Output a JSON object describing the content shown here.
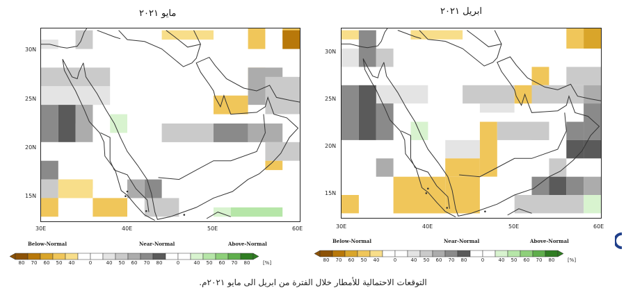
{
  "caption": "التوقعات الاحتمالية للأمطار خلال الفترة من ابريل الى مايو ٢٠٢١م.",
  "colors": {
    "below": {
      "80": "#8c5206",
      "70": "#b8780a",
      "60": "#d9a52a",
      "50": "#f0c65a",
      "40": "#f8de8a"
    },
    "near": {
      "40": "#e4e4e4",
      "50": "#cacaca",
      "60": "#acacac",
      "70": "#8a8a8a",
      "80": "#5a5a5a"
    },
    "above": {
      "40": "#d8f3cf",
      "50": "#b6e6a8",
      "60": "#8ed07a",
      "70": "#5fae4c",
      "80": "#2f7d22"
    }
  },
  "maps": [
    {
      "id": "may",
      "title": "مايو ٢٠٢١",
      "lat_labels": [
        "30N",
        "25N",
        "20N",
        "15N"
      ],
      "lon_labels": [
        "30E",
        "40E",
        "50E",
        "60E"
      ],
      "legend": {
        "below_label": "Below-Normal",
        "near_label": "Near-Normal",
        "above_label": "Above-Normal",
        "ticks": [
          "80",
          "70",
          "60",
          "50",
          "40",
          "0",
          "40",
          "50",
          "60",
          "70",
          "80",
          "0",
          "40",
          "50",
          "60",
          "70",
          "80",
          "[%]"
        ],
        "swatches": [
          {
            "cat": "below",
            "p": "80"
          },
          {
            "cat": "below",
            "p": "70"
          },
          {
            "cat": "below",
            "p": "60"
          },
          {
            "cat": "below",
            "p": "50"
          },
          {
            "cat": "below",
            "p": "40"
          },
          {
            "cat": "white",
            "p": "0"
          },
          {
            "cat": "white",
            "p": "0"
          },
          {
            "cat": "near",
            "p": "40"
          },
          {
            "cat": "near",
            "p": "50"
          },
          {
            "cat": "near",
            "p": "60"
          },
          {
            "cat": "near",
            "p": "70"
          },
          {
            "cat": "near",
            "p": "80"
          },
          {
            "cat": "white",
            "p": "0"
          },
          {
            "cat": "white",
            "p": "0"
          },
          {
            "cat": "above",
            "p": "40"
          },
          {
            "cat": "above",
            "p": "50"
          },
          {
            "cat": "above",
            "p": "60"
          },
          {
            "cat": "above",
            "p": "70"
          },
          {
            "cat": "above",
            "p": "80"
          }
        ]
      },
      "cells": [
        {
          "lon": 30,
          "lat": 31,
          "w": 2,
          "h": 1,
          "cat": "near",
          "p": "40"
        },
        {
          "lon": 34,
          "lat": 31,
          "w": 2,
          "h": 2,
          "cat": "near",
          "p": "50"
        },
        {
          "lon": 40,
          "lat": 32,
          "w": 2,
          "h": 1,
          "cat": "white",
          "p": "0"
        },
        {
          "lon": 44,
          "lat": 32,
          "w": 6,
          "h": 1,
          "cat": "below",
          "p": "40"
        },
        {
          "lon": 54,
          "lat": 31,
          "w": 2,
          "h": 3,
          "cat": "below",
          "p": "50"
        },
        {
          "lon": 58,
          "lat": 32,
          "w": 2,
          "h": 3,
          "cat": "below",
          "p": "50"
        },
        {
          "lon": 58,
          "lat": 31,
          "w": 2,
          "h": 2,
          "cat": "below",
          "p": "70"
        },
        {
          "lon": 30,
          "lat": 27,
          "w": 8,
          "h": 2,
          "cat": "near",
          "p": "50"
        },
        {
          "lon": 30,
          "lat": 25,
          "w": 8,
          "h": 2,
          "cat": "near",
          "p": "40"
        },
        {
          "lon": 34,
          "lat": 23,
          "w": 2,
          "h": 2,
          "cat": "near",
          "p": "60"
        },
        {
          "lon": 54,
          "lat": 26,
          "w": 2,
          "h": 3,
          "cat": "below",
          "p": "50"
        },
        {
          "lon": 50,
          "lat": 24,
          "w": 4,
          "h": 2,
          "cat": "below",
          "p": "50"
        },
        {
          "lon": 38,
          "lat": 22,
          "w": 2,
          "h": 2,
          "cat": "above",
          "p": "40"
        },
        {
          "lon": 30,
          "lat": 21,
          "w": 2,
          "h": 4,
          "cat": "near",
          "p": "70"
        },
        {
          "lon": 32,
          "lat": 21,
          "w": 2,
          "h": 4,
          "cat": "near",
          "p": "80"
        },
        {
          "lon": 34,
          "lat": 21,
          "w": 2,
          "h": 4,
          "cat": "near",
          "p": "60"
        },
        {
          "lon": 54,
          "lat": 25,
          "w": 4,
          "h": 4,
          "cat": "near",
          "p": "60"
        },
        {
          "lon": 56,
          "lat": 24,
          "w": 4,
          "h": 4,
          "cat": "near",
          "p": "50"
        },
        {
          "lon": 44,
          "lat": 21,
          "w": 6,
          "h": 2,
          "cat": "near",
          "p": "50"
        },
        {
          "lon": 50,
          "lat": 21,
          "w": 4,
          "h": 2,
          "cat": "near",
          "p": "70"
        },
        {
          "lon": 54,
          "lat": 21,
          "w": 4,
          "h": 2,
          "cat": "near",
          "p": "60"
        },
        {
          "lon": 56,
          "lat": 19,
          "w": 4,
          "h": 2,
          "cat": "near",
          "p": "50"
        },
        {
          "lon": 56,
          "lat": 18,
          "w": 2,
          "h": 1,
          "cat": "below",
          "p": "50"
        },
        {
          "lon": 30,
          "lat": 17,
          "w": 2,
          "h": 2,
          "cat": "near",
          "p": "70"
        },
        {
          "lon": 32,
          "lat": 16,
          "w": 4,
          "h": 1,
          "cat": "below",
          "p": "50"
        },
        {
          "lon": 30,
          "lat": 15,
          "w": 2,
          "h": 2,
          "cat": "near",
          "p": "50"
        },
        {
          "lon": 32,
          "lat": 15,
          "w": 4,
          "h": 2,
          "cat": "below",
          "p": "40"
        },
        {
          "lon": 30,
          "lat": 13,
          "w": 2,
          "h": 2,
          "cat": "below",
          "p": "50"
        },
        {
          "lon": 36,
          "lat": 13,
          "w": 4,
          "h": 2,
          "cat": "below",
          "p": "50"
        },
        {
          "lon": 42,
          "lat": 15,
          "w": 2,
          "h": 2,
          "cat": "near",
          "p": "70"
        },
        {
          "lon": 40,
          "lat": 15,
          "w": 2,
          "h": 2,
          "cat": "near",
          "p": "60"
        },
        {
          "lon": 42,
          "lat": 13,
          "w": 4,
          "h": 2,
          "cat": "near",
          "p": "50"
        },
        {
          "lon": 50,
          "lat": 13,
          "w": 2,
          "h": 1,
          "cat": "above",
          "p": "40"
        },
        {
          "lon": 52,
          "lat": 13,
          "w": 6,
          "h": 1,
          "cat": "above",
          "p": "50"
        }
      ]
    },
    {
      "id": "april",
      "title": "ابريل ٢٠٢١",
      "lat_labels": [
        "30N",
        "25N",
        "20N",
        "15N"
      ],
      "lon_labels": [
        "30E",
        "40E",
        "50E",
        "60E"
      ],
      "legend": {
        "below_label": "Below-Normal",
        "near_label": "Near-Normal",
        "above_label": "Above-Normal",
        "ticks": [
          "80",
          "70",
          "60",
          "50",
          "40",
          "0",
          "40",
          "50",
          "60",
          "70",
          "80",
          "0",
          "40",
          "50",
          "60",
          "70",
          "80",
          "[%]"
        ],
        "swatches": [
          {
            "cat": "below",
            "p": "80"
          },
          {
            "cat": "below",
            "p": "70"
          },
          {
            "cat": "below",
            "p": "60"
          },
          {
            "cat": "below",
            "p": "50"
          },
          {
            "cat": "below",
            "p": "40"
          },
          {
            "cat": "white",
            "p": "0"
          },
          {
            "cat": "white",
            "p": "0"
          },
          {
            "cat": "near",
            "p": "40"
          },
          {
            "cat": "near",
            "p": "50"
          },
          {
            "cat": "near",
            "p": "60"
          },
          {
            "cat": "near",
            "p": "70"
          },
          {
            "cat": "near",
            "p": "80"
          },
          {
            "cat": "white",
            "p": "0"
          },
          {
            "cat": "white",
            "p": "0"
          },
          {
            "cat": "above",
            "p": "40"
          },
          {
            "cat": "above",
            "p": "50"
          },
          {
            "cat": "above",
            "p": "60"
          },
          {
            "cat": "above",
            "p": "70"
          },
          {
            "cat": "above",
            "p": "80"
          }
        ]
      },
      "cells": [
        {
          "lon": 30,
          "lat": 32,
          "w": 2,
          "h": 1,
          "cat": "below",
          "p": "40"
        },
        {
          "lon": 38,
          "lat": 32,
          "w": 6,
          "h": 1,
          "cat": "below",
          "p": "40"
        },
        {
          "lon": 56,
          "lat": 31,
          "w": 2,
          "h": 3,
          "cat": "below",
          "p": "50"
        },
        {
          "lon": 58,
          "lat": 31,
          "w": 2,
          "h": 3,
          "cat": "below",
          "p": "60"
        },
        {
          "lon": 30,
          "lat": 29,
          "w": 2,
          "h": 2,
          "cat": "near",
          "p": "40"
        },
        {
          "lon": 32,
          "lat": 29,
          "w": 2,
          "h": 4,
          "cat": "near",
          "p": "70"
        },
        {
          "lon": 34,
          "lat": 29,
          "w": 2,
          "h": 2,
          "cat": "near",
          "p": "50"
        },
        {
          "lon": 52,
          "lat": 27,
          "w": 2,
          "h": 2,
          "cat": "below",
          "p": "50"
        },
        {
          "lon": 56,
          "lat": 27,
          "w": 4,
          "h": 2,
          "cat": "near",
          "p": "50"
        },
        {
          "lon": 34,
          "lat": 25,
          "w": 6,
          "h": 2,
          "cat": "near",
          "p": "40"
        },
        {
          "lon": 44,
          "lat": 25,
          "w": 6,
          "h": 2,
          "cat": "near",
          "p": "50"
        },
        {
          "lon": 46,
          "lat": 24,
          "w": 4,
          "h": 1,
          "cat": "near",
          "p": "40"
        },
        {
          "lon": 50,
          "lat": 25,
          "w": 2,
          "h": 2,
          "cat": "below",
          "p": "50"
        },
        {
          "lon": 52,
          "lat": 25,
          "w": 6,
          "h": 2,
          "cat": "near",
          "p": "50"
        },
        {
          "lon": 58,
          "lat": 25,
          "w": 2,
          "h": 2,
          "cat": "near",
          "p": "60"
        },
        {
          "lon": 30,
          "lat": 21,
          "w": 2,
          "h": 6,
          "cat": "near",
          "p": "70"
        },
        {
          "lon": 32,
          "lat": 21,
          "w": 2,
          "h": 6,
          "cat": "near",
          "p": "80"
        },
        {
          "lon": 34,
          "lat": 21,
          "w": 2,
          "h": 4,
          "cat": "near",
          "p": "70"
        },
        {
          "lon": 38,
          "lat": 21,
          "w": 2,
          "h": 2,
          "cat": "above",
          "p": "40"
        },
        {
          "lon": 42,
          "lat": 19,
          "w": 4,
          "h": 2,
          "cat": "near",
          "p": "40"
        },
        {
          "lon": 46,
          "lat": 17,
          "w": 2,
          "h": 6,
          "cat": "below",
          "p": "50"
        },
        {
          "lon": 42,
          "lat": 17,
          "w": 4,
          "h": 2,
          "cat": "below",
          "p": "50"
        },
        {
          "lon": 48,
          "lat": 21,
          "w": 6,
          "h": 2,
          "cat": "near",
          "p": "50"
        },
        {
          "lon": 52,
          "lat": 21,
          "w": 2,
          "h": 2,
          "cat": "near",
          "p": "50"
        },
        {
          "lon": 56,
          "lat": 21,
          "w": 2,
          "h": 2,
          "cat": "near",
          "p": "70"
        },
        {
          "lon": 58,
          "lat": 21,
          "w": 2,
          "h": 4,
          "cat": "near",
          "p": "70"
        },
        {
          "lon": 56,
          "lat": 19,
          "w": 2,
          "h": 2,
          "cat": "near",
          "p": "80"
        },
        {
          "lon": 58,
          "lat": 19,
          "w": 2,
          "h": 2,
          "cat": "near",
          "p": "80"
        },
        {
          "lon": 54,
          "lat": 17,
          "w": 2,
          "h": 2,
          "cat": "near",
          "p": "50"
        },
        {
          "lon": 34,
          "lat": 17,
          "w": 2,
          "h": 2,
          "cat": "near",
          "p": "60"
        },
        {
          "lon": 52,
          "lat": 15,
          "w": 2,
          "h": 2,
          "cat": "near",
          "p": "70"
        },
        {
          "lon": 54,
          "lat": 15,
          "w": 2,
          "h": 2,
          "cat": "near",
          "p": "80"
        },
        {
          "lon": 56,
          "lat": 15,
          "w": 2,
          "h": 2,
          "cat": "near",
          "p": "70"
        },
        {
          "lon": 58,
          "lat": 15,
          "w": 2,
          "h": 2,
          "cat": "near",
          "p": "60"
        },
        {
          "lon": 50,
          "lat": 13,
          "w": 8,
          "h": 2,
          "cat": "near",
          "p": "50"
        },
        {
          "lon": 58,
          "lat": 13,
          "w": 2,
          "h": 2,
          "cat": "above",
          "p": "40"
        },
        {
          "lon": 30,
          "lat": 13,
          "w": 2,
          "h": 2,
          "cat": "below",
          "p": "50"
        },
        {
          "lon": 36,
          "lat": 13,
          "w": 6,
          "h": 4,
          "cat": "below",
          "p": "50"
        },
        {
          "lon": 42,
          "lat": 13,
          "w": 4,
          "h": 4,
          "cat": "below",
          "p": "50"
        }
      ]
    }
  ]
}
